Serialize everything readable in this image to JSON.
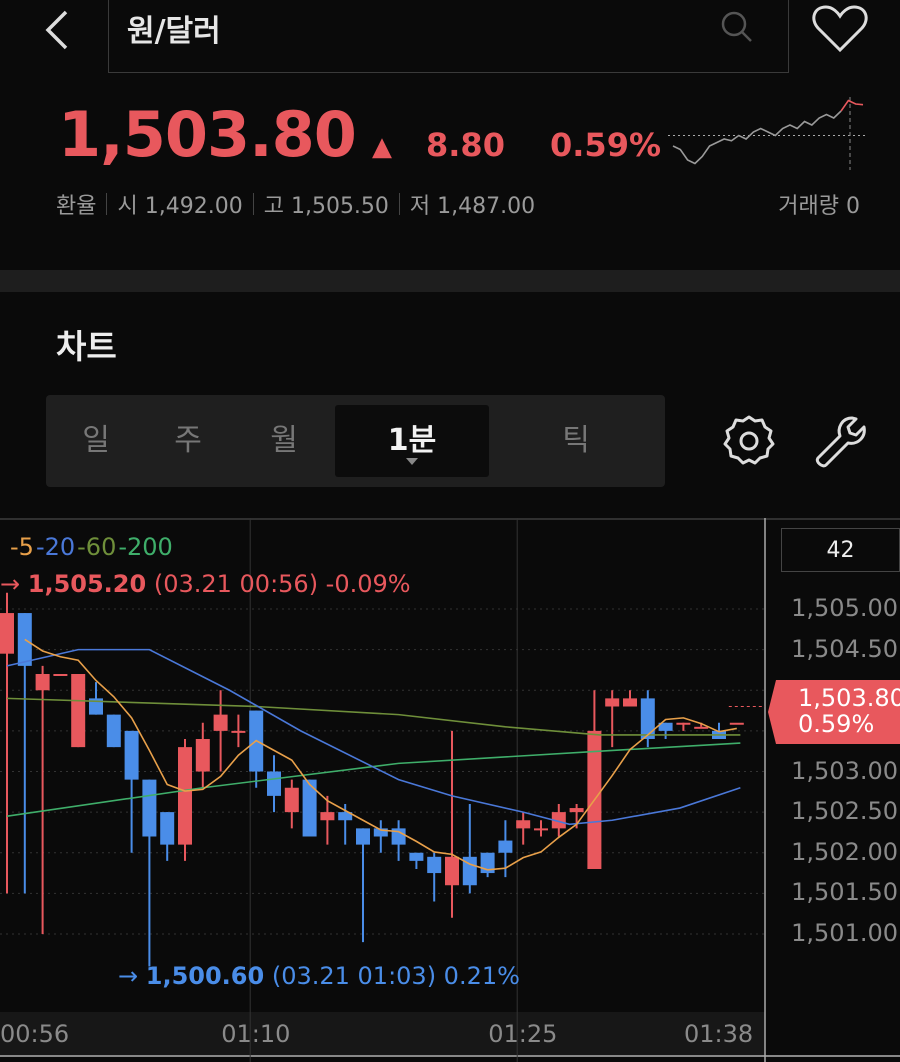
{
  "header": {
    "title": "원/달러",
    "back_icon": "chevron-left-icon",
    "search_icon": "search-icon",
    "favorite_icon": "heart-icon"
  },
  "quote": {
    "price": "1,503.80",
    "direction": "▲",
    "change": "8.80",
    "change_pct": "0.59%",
    "label": "환율",
    "open_label": "시",
    "open": "1,492.00",
    "high_label": "고",
    "high": "1,505.50",
    "low_label": "저",
    "low": "1,487.00",
    "volume": "거래량 0",
    "up_color": "#e8585d",
    "down_color": "#4a8de8",
    "sparkline": [
      1492,
      1491,
      1488,
      1487,
      1489,
      1492,
      1493,
      1494,
      1493.5,
      1495,
      1494,
      1496,
      1497,
      1496,
      1495,
      1497,
      1498,
      1497,
      1499,
      1498,
      1500,
      1501,
      1500,
      1502,
      1505,
      1504,
      1503.8
    ]
  },
  "chart_section": {
    "title": "차트",
    "tabs": [
      {
        "label": "일"
      },
      {
        "label": "주"
      },
      {
        "label": "월"
      },
      {
        "label": "1분",
        "selected": true
      },
      {
        "label": "틱"
      }
    ],
    "settings_icon": "gear-icon",
    "tools_icon": "wrench-icon"
  },
  "chart_data": {
    "type": "candlestick",
    "legend": [
      {
        "label": "-5",
        "color": "#e8a04a"
      },
      {
        "label": "-20",
        "color": "#4a78d8"
      },
      {
        "label": "-60",
        "color": "#6f8f3a"
      },
      {
        "label": "-200",
        "color": "#3fae6a"
      }
    ],
    "candle_count": "42",
    "y_ticks": [
      "1,505.00",
      "1,504.50",
      "1,503.00",
      "1,502.50",
      "1,502.00",
      "1,501.50",
      "1,501.00"
    ],
    "y_tick_values": [
      1505,
      1504.5,
      1503,
      1502.5,
      1502,
      1501.5,
      1501
    ],
    "ylim": [
      1500.3,
      1505.6
    ],
    "x_ticks": [
      {
        "label": "00:56",
        "index": 0
      },
      {
        "label": "01:10",
        "index": 14
      },
      {
        "label": "01:25",
        "index": 29
      },
      {
        "label": "01:38",
        "index": 40
      }
    ],
    "current": {
      "price": "1,503.80",
      "pct": "0.59%",
      "value": 1503.8
    },
    "high_annotation": {
      "price": "1,505.20",
      "detail": "(03.21 00:56) -0.09%"
    },
    "low_annotation": {
      "price": "1,500.60",
      "detail": "(03.21 01:03) 0.21%"
    },
    "candles": [
      [
        1504.45,
        1504.95,
        1505.2,
        1501.5
      ],
      [
        1504.95,
        1504.3,
        1504.95,
        1501.5
      ],
      [
        1504.0,
        1504.2,
        1504.3,
        1501.0
      ],
      [
        1504.2,
        1504.2,
        1504.2,
        1504.2
      ],
      [
        1503.3,
        1504.2,
        1504.2,
        1503.3
      ],
      [
        1503.9,
        1503.7,
        1504.1,
        1503.7
      ],
      [
        1503.7,
        1503.3,
        1503.7,
        1503.3
      ],
      [
        1503.5,
        1502.9,
        1503.5,
        1502.0
      ],
      [
        1502.9,
        1502.2,
        1502.9,
        1500.6
      ],
      [
        1502.5,
        1502.1,
        1502.5,
        1501.9
      ],
      [
        1502.1,
        1503.3,
        1503.4,
        1501.9
      ],
      [
        1503.0,
        1503.4,
        1503.6,
        1502.8
      ],
      [
        1503.5,
        1503.7,
        1504.0,
        1503.0
      ],
      [
        1503.5,
        1503.5,
        1503.7,
        1503.3
      ],
      [
        1503.75,
        1503.0,
        1503.75,
        1502.8
      ],
      [
        1503.0,
        1502.7,
        1503.2,
        1502.5
      ],
      [
        1502.5,
        1502.8,
        1502.9,
        1502.3
      ],
      [
        1502.9,
        1502.2,
        1502.9,
        1502.2
      ],
      [
        1502.4,
        1502.5,
        1502.7,
        1502.1
      ],
      [
        1502.5,
        1502.4,
        1502.6,
        1502.1
      ],
      [
        1502.3,
        1502.1,
        1502.3,
        1500.9
      ],
      [
        1502.3,
        1502.2,
        1502.4,
        1502.0
      ],
      [
        1502.3,
        1502.1,
        1502.4,
        1501.9
      ],
      [
        1502.0,
        1501.9,
        1502.0,
        1501.8
      ],
      [
        1501.95,
        1501.75,
        1502.0,
        1501.4
      ],
      [
        1501.6,
        1501.95,
        1503.5,
        1501.2
      ],
      [
        1501.95,
        1501.6,
        1502.6,
        1501.5
      ],
      [
        1502.0,
        1501.75,
        1502.0,
        1501.7
      ],
      [
        1502.15,
        1502.0,
        1502.4,
        1501.7
      ],
      [
        1502.3,
        1502.4,
        1502.5,
        1502.1
      ],
      [
        1502.3,
        1502.3,
        1502.4,
        1502.2
      ],
      [
        1502.3,
        1502.5,
        1502.6,
        1502.2
      ],
      [
        1502.5,
        1502.55,
        1502.6,
        1502.3
      ],
      [
        1501.8,
        1503.5,
        1504.0,
        1501.8
      ],
      [
        1503.8,
        1503.9,
        1504.0,
        1503.3
      ],
      [
        1503.8,
        1503.9,
        1504.0,
        1503.8
      ],
      [
        1503.9,
        1503.4,
        1504.0,
        1503.3
      ],
      [
        1503.6,
        1503.5,
        1503.6,
        1503.4
      ],
      [
        1503.6,
        1503.6,
        1503.6,
        1503.5
      ],
      [
        1503.55,
        1503.55,
        1503.6,
        1503.55
      ],
      [
        1503.5,
        1503.4,
        1503.6,
        1503.4
      ],
      [
        1503.6,
        1503.6,
        1503.6,
        1503.6
      ]
    ],
    "candle_fields": [
      "open",
      "close",
      "high",
      "low"
    ],
    "ma20": [
      [
        0,
        1504.3
      ],
      [
        4,
        1504.5
      ],
      [
        8,
        1504.5
      ],
      [
        12.5,
        1504.0
      ],
      [
        16.5,
        1503.5
      ],
      [
        22,
        1502.9
      ],
      [
        25,
        1502.7
      ],
      [
        29,
        1502.5
      ],
      [
        31.6,
        1502.35
      ],
      [
        34,
        1502.4
      ],
      [
        37.8,
        1502.55
      ],
      [
        41.2,
        1502.8
      ]
    ],
    "ma60": [
      [
        0,
        1503.9
      ],
      [
        14,
        1503.8
      ],
      [
        22,
        1503.7
      ],
      [
        28,
        1503.55
      ],
      [
        33.3,
        1503.45
      ],
      [
        41.2,
        1503.45
      ]
    ],
    "ma200": [
      [
        0,
        1502.45
      ],
      [
        11,
        1502.8
      ],
      [
        22,
        1503.1
      ],
      [
        33.3,
        1503.25
      ],
      [
        41.2,
        1503.35
      ]
    ]
  }
}
